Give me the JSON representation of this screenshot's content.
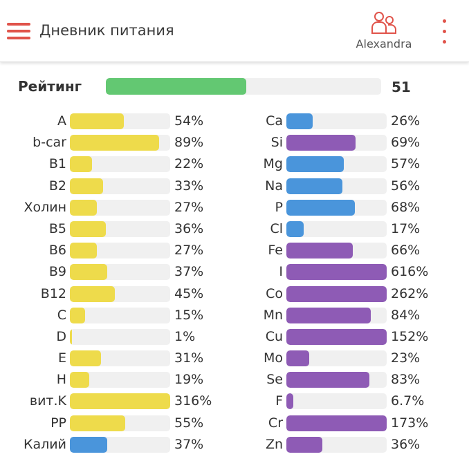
{
  "header": {
    "title": "Дневник питания",
    "user": "Alexandra"
  },
  "rating": {
    "label": "Рейтинг",
    "value": "51",
    "fraction": 0.51,
    "color": "#63C872"
  },
  "left": [
    {
      "label": "A",
      "pct": "54%",
      "v": 54,
      "color": "#EEDB4B"
    },
    {
      "label": "b-car",
      "pct": "89%",
      "v": 89,
      "color": "#EEDB4B"
    },
    {
      "label": "B1",
      "pct": "22%",
      "v": 22,
      "color": "#EEDB4B"
    },
    {
      "label": "B2",
      "pct": "33%",
      "v": 33,
      "color": "#EEDB4B"
    },
    {
      "label": "Холин",
      "pct": "27%",
      "v": 27,
      "color": "#EEDB4B"
    },
    {
      "label": "B5",
      "pct": "36%",
      "v": 36,
      "color": "#EEDB4B"
    },
    {
      "label": "B6",
      "pct": "27%",
      "v": 27,
      "color": "#EEDB4B"
    },
    {
      "label": "B9",
      "pct": "37%",
      "v": 37,
      "color": "#EEDB4B"
    },
    {
      "label": "B12",
      "pct": "45%",
      "v": 45,
      "color": "#EEDB4B"
    },
    {
      "label": "C",
      "pct": "15%",
      "v": 15,
      "color": "#EEDB4B"
    },
    {
      "label": "D",
      "pct": "1%",
      "v": 1,
      "color": "#EEDB4B"
    },
    {
      "label": "E",
      "pct": "31%",
      "v": 31,
      "color": "#EEDB4B"
    },
    {
      "label": "H",
      "pct": "19%",
      "v": 19,
      "color": "#EEDB4B"
    },
    {
      "label": "вит.K",
      "pct": "316%",
      "v": 316,
      "color": "#EEDB4B"
    },
    {
      "label": "PP",
      "pct": "55%",
      "v": 55,
      "color": "#EEDB4B"
    },
    {
      "label": "Калий",
      "pct": "37%",
      "v": 37,
      "color": "#4A95DB"
    }
  ],
  "right": [
    {
      "label": "Ca",
      "pct": "26%",
      "v": 26,
      "color": "#4A95DB"
    },
    {
      "label": "Si",
      "pct": "69%",
      "v": 69,
      "color": "#8E5BB5"
    },
    {
      "label": "Mg",
      "pct": "57%",
      "v": 57,
      "color": "#4A95DB"
    },
    {
      "label": "Na",
      "pct": "56%",
      "v": 56,
      "color": "#4A95DB"
    },
    {
      "label": "P",
      "pct": "68%",
      "v": 68,
      "color": "#4A95DB"
    },
    {
      "label": "Cl",
      "pct": "17%",
      "v": 17,
      "color": "#4A95DB"
    },
    {
      "label": "Fe",
      "pct": "66%",
      "v": 66,
      "color": "#8E5BB5"
    },
    {
      "label": "I",
      "pct": "616%",
      "v": 616,
      "color": "#8E5BB5"
    },
    {
      "label": "Co",
      "pct": "262%",
      "v": 262,
      "color": "#8E5BB5"
    },
    {
      "label": "Mn",
      "pct": "84%",
      "v": 84,
      "color": "#8E5BB5"
    },
    {
      "label": "Cu",
      "pct": "152%",
      "v": 152,
      "color": "#8E5BB5"
    },
    {
      "label": "Mo",
      "pct": "23%",
      "v": 23,
      "color": "#8E5BB5"
    },
    {
      "label": "Se",
      "pct": "83%",
      "v": 83,
      "color": "#8E5BB5"
    },
    {
      "label": "F",
      "pct": "6.7%",
      "v": 6.7,
      "color": "#8E5BB5"
    },
    {
      "label": "Cr",
      "pct": "173%",
      "v": 173,
      "color": "#8E5BB5"
    },
    {
      "label": "Zn",
      "pct": "36%",
      "v": 36,
      "color": "#8E5BB5"
    }
  ]
}
